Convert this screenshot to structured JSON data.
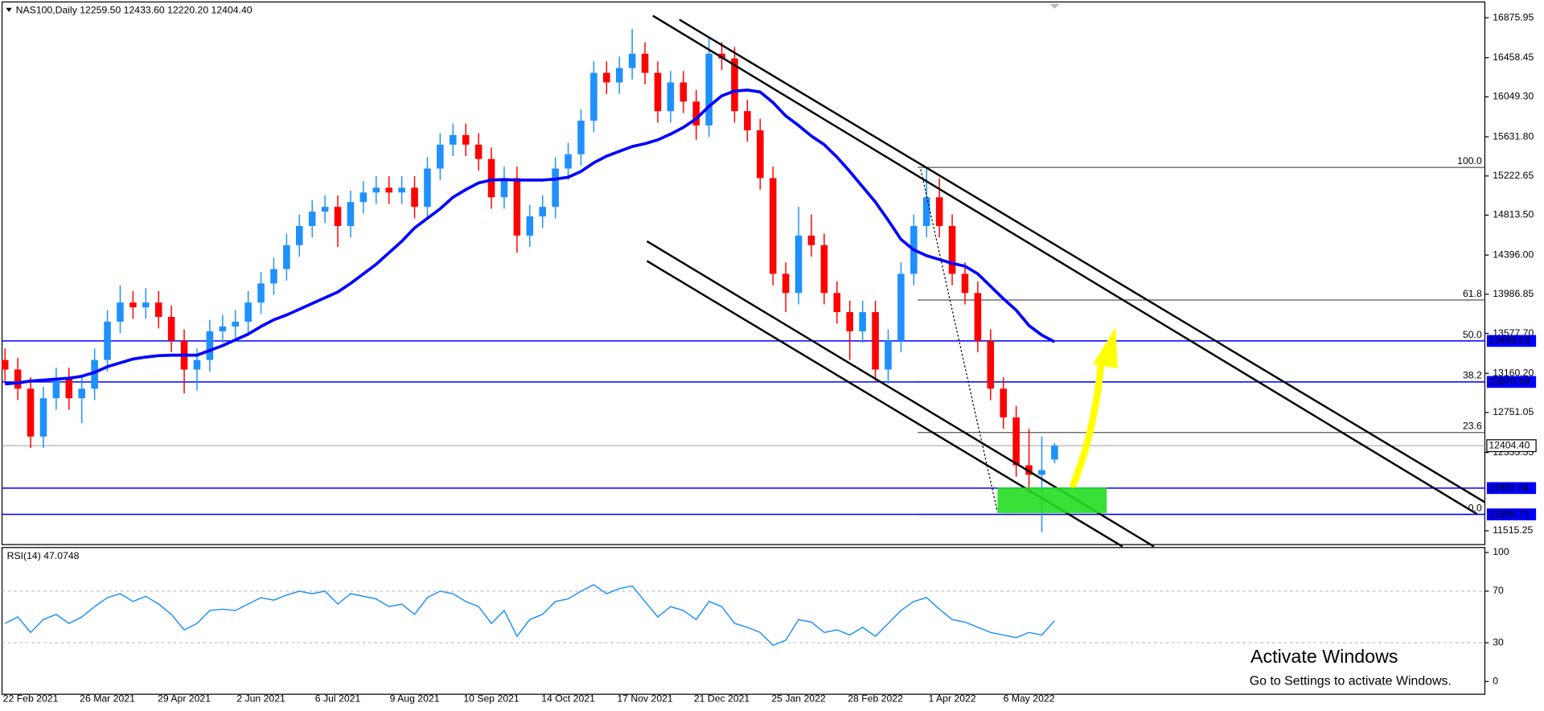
{
  "chart_data": [
    {
      "type": "candlestick",
      "title": "NAS100,Daily",
      "quote": "12259.50 12433.60 12220.20 12404.40",
      "categories": [
        null,
        null,
        "22 Feb 2021",
        null,
        null,
        null,
        null,
        null,
        "26 Mar 2021",
        null,
        null,
        null,
        null,
        null,
        "29 Apr 2021",
        null,
        null,
        null,
        null,
        null,
        "2 Jun 2021",
        null,
        null,
        null,
        null,
        null,
        "6 Jul 2021",
        null,
        null,
        null,
        null,
        null,
        "9 Aug 2021",
        null,
        null,
        null,
        null,
        null,
        "10 Sep 2021",
        null,
        null,
        null,
        null,
        null,
        "14 Oct 2021",
        null,
        null,
        null,
        null,
        null,
        "17 Nov 2021",
        null,
        null,
        null,
        null,
        null,
        "21 Dec 2021",
        null,
        null,
        null,
        null,
        null,
        "25 Jan 2022",
        null,
        null,
        null,
        null,
        null,
        "28 Feb 2022",
        null,
        null,
        null,
        null,
        null,
        "1 Apr 2022",
        null,
        null,
        null,
        null,
        null,
        "6 May 2022",
        null,
        null
      ],
      "open": [
        13300,
        13200,
        13000,
        12500,
        12900,
        13100,
        12900,
        13000,
        13300,
        13700,
        13900,
        13850,
        13900,
        13750,
        13500,
        13200,
        13300,
        13600,
        13650,
        13700,
        13900,
        14100,
        14250,
        14500,
        14700,
        14850,
        14900,
        14700,
        14950,
        15050,
        15100,
        15050,
        15100,
        14900,
        15300,
        15550,
        15650,
        15550,
        15400,
        15000,
        15200,
        14600,
        14800,
        14900,
        15300,
        15450,
        15800,
        16300,
        16200,
        16350,
        16500,
        16300,
        15900,
        16200,
        16000,
        15750,
        16500,
        16450,
        15900,
        15700,
        15200,
        14200,
        14000,
        14600,
        14500,
        14000,
        13800,
        13600,
        13800,
        13200,
        13500,
        14200,
        14700,
        15000,
        14700,
        14200,
        14000,
        13500,
        13000,
        12700,
        12200,
        12100,
        12259.5
      ],
      "high": [
        13420,
        13320,
        13120,
        13020,
        13220,
        13220,
        13120,
        13420,
        13820,
        14080,
        14020,
        14050,
        14020,
        13870,
        13620,
        13420,
        13720,
        13770,
        13820,
        14020,
        14220,
        14370,
        14620,
        14820,
        14970,
        15020,
        15020,
        15070,
        15170,
        15220,
        15220,
        15220,
        15220,
        15420,
        15670,
        15770,
        15770,
        15670,
        15520,
        15320,
        15320,
        14920,
        15020,
        15420,
        15570,
        15920,
        16420,
        16420,
        16470,
        16760,
        16620,
        16420,
        16320,
        16320,
        16120,
        16660,
        16620,
        16570,
        16020,
        15820,
        15320,
        14320,
        14900,
        14820,
        14620,
        14120,
        13920,
        13920,
        13920,
        13620,
        14320,
        14820,
        15300,
        15200,
        14820,
        14320,
        14120,
        13620,
        13120,
        12820,
        12580,
        12500,
        12433.6
      ],
      "low": [
        13080,
        12880,
        12380,
        12380,
        12780,
        12780,
        12640,
        12880,
        13180,
        13580,
        13730,
        13730,
        13630,
        13380,
        12950,
        12980,
        13180,
        13480,
        13530,
        13580,
        13780,
        13980,
        14130,
        14380,
        14580,
        14730,
        14480,
        14580,
        14830,
        14930,
        14930,
        14930,
        14780,
        14780,
        15180,
        15430,
        15430,
        15280,
        14880,
        14880,
        14420,
        14480,
        14680,
        14780,
        15180,
        15330,
        15680,
        16080,
        16080,
        16230,
        16180,
        15780,
        15780,
        15880,
        15600,
        15630,
        16330,
        15780,
        15580,
        15080,
        14080,
        13800,
        13880,
        14380,
        13880,
        13680,
        13300,
        13480,
        13080,
        13050,
        13380,
        14080,
        14580,
        14580,
        14080,
        13880,
        13380,
        12880,
        12580,
        12080,
        11900,
        11500,
        12220.2
      ],
      "close": [
        13200,
        13000,
        12500,
        12900,
        13100,
        12900,
        13000,
        13300,
        13700,
        13900,
        13850,
        13900,
        13750,
        13500,
        13200,
        13300,
        13600,
        13650,
        13700,
        13900,
        14100,
        14250,
        14500,
        14700,
        14850,
        14900,
        14700,
        14950,
        15050,
        15100,
        15050,
        15100,
        14900,
        15300,
        15550,
        15650,
        15550,
        15400,
        15000,
        15200,
        14600,
        14800,
        14900,
        15300,
        15450,
        15800,
        16300,
        16200,
        16350,
        16500,
        16300,
        15900,
        16200,
        16000,
        15750,
        16500,
        16450,
        15900,
        15700,
        15200,
        14200,
        14000,
        14600,
        14500,
        14000,
        13800,
        13600,
        13800,
        13200,
        13500,
        14200,
        14700,
        15000,
        14700,
        14200,
        14000,
        13500,
        13000,
        12700,
        12200,
        12100,
        12150,
        12404.4
      ],
      "up_color": "#1e90ff",
      "down_color": "#ff0000",
      "ma": {
        "color": "#0000ff",
        "values": [
          13050,
          13060,
          13080,
          13090,
          13100,
          13110,
          13130,
          13170,
          13230,
          13270,
          13310,
          13330,
          13345,
          13350,
          13350,
          13350,
          13400,
          13450,
          13510,
          13570,
          13650,
          13720,
          13770,
          13830,
          13890,
          13950,
          14010,
          14100,
          14200,
          14300,
          14420,
          14540,
          14680,
          14780,
          14880,
          15000,
          15080,
          15150,
          15180,
          15185,
          15180,
          15180,
          15180,
          15190,
          15210,
          15270,
          15360,
          15430,
          15480,
          15530,
          15560,
          15600,
          15660,
          15730,
          15820,
          15950,
          16060,
          16110,
          16120,
          16100,
          15990,
          15850,
          15750,
          15640,
          15550,
          15420,
          15270,
          15110,
          14950,
          14760,
          14560,
          14450,
          14390,
          14350,
          14310,
          14280,
          14200,
          14070,
          13940,
          13820,
          13660,
          13560,
          13490
        ]
      },
      "ylim": [
        11371.2,
        17040.6
      ],
      "yticks": [
        16875.95,
        16458.45,
        {
          "value": 16049.3,
          "label": "16049.30"
        },
        {
          "value": 15631.8,
          "label": "15631.80"
        },
        15222.65,
        {
          "value": 14813.5,
          "label": "14813.50"
        },
        {
          "value": 14396,
          "label": "14396.00"
        },
        13986.85,
        {
          "value": 13577.7,
          "label": "13577.70"
        },
        {
          "value": 13160.2,
          "label": "13160.20"
        },
        12751.05,
        12333.55,
        11515.25
      ],
      "hlines": {
        "color": "#0000ff",
        "values": [
          13499.09,
          13070.59,
          11961.54,
          11686.71
        ]
      },
      "current_price": {
        "value": 12404.4,
        "label": "12404.40"
      },
      "fib": {
        "color": "#555555",
        "levels": [
          {
            "value": 15312,
            "label": "100.0"
          },
          {
            "value": 13927,
            "label": "61.8"
          },
          {
            "value": 13499,
            "label": "50.0"
          },
          {
            "value": 13071,
            "label": "38.2"
          },
          {
            "value": 12542,
            "label": "23.6"
          },
          {
            "value": 11686.71,
            "label": "0.0"
          }
        ]
      }
    },
    {
      "type": "line",
      "title": "RSI(14) 47.0748",
      "color": "#1e90ff",
      "values": [
        45,
        50,
        38,
        48,
        52,
        45,
        50,
        58,
        65,
        68,
        62,
        66,
        60,
        52,
        40,
        45,
        55,
        56,
        55,
        60,
        65,
        63,
        67,
        70,
        68,
        70,
        60,
        68,
        66,
        64,
        58,
        60,
        52,
        65,
        70,
        68,
        62,
        58,
        45,
        55,
        35,
        48,
        52,
        62,
        64,
        70,
        75,
        68,
        72,
        74,
        62,
        50,
        58,
        55,
        48,
        62,
        58,
        45,
        42,
        38,
        28,
        32,
        48,
        46,
        38,
        40,
        36,
        42,
        35,
        45,
        55,
        62,
        65,
        56,
        48,
        46,
        42,
        38,
        36,
        34,
        38,
        36,
        47.0748
      ],
      "ylim": [
        -9.9,
        103.8
      ],
      "yticks": [
        0,
        30,
        70,
        100
      ],
      "levels": [
        30,
        70
      ]
    }
  ],
  "watermark": {
    "title": "Activate Windows",
    "subtitle": "Go to Settings to activate Windows."
  }
}
